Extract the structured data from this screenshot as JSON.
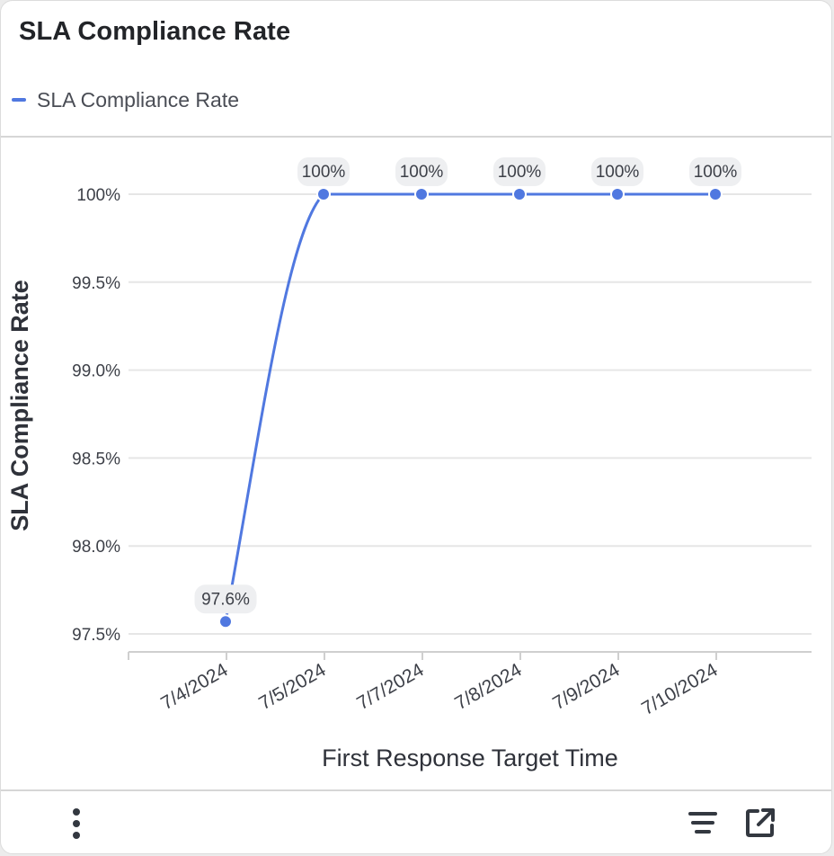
{
  "widget": {
    "title": "SLA Compliance Rate"
  },
  "footer": {
    "more_icon": "more-vertical-icon",
    "filter_icon": "filter-lines-icon",
    "open_icon": "external-link-icon"
  },
  "colors": {
    "series": "#5078e0",
    "label_bg": "#eeeff1",
    "grid": "#e6e6e6",
    "axis": "#cfcfcf",
    "text": "#3d4048"
  },
  "chart_data": {
    "type": "line",
    "categories": [
      "7/4/2024",
      "7/5/2024",
      "7/7/2024",
      "7/8/2024",
      "7/9/2024",
      "7/10/2024"
    ],
    "series": [
      {
        "name": "SLA Compliance Rate",
        "values": [
          97.57,
          100,
          100,
          100,
          100,
          100
        ],
        "labels": [
          "97.6%",
          "100%",
          "100%",
          "100%",
          "100%",
          "100%"
        ]
      }
    ],
    "xlabel": "First Response Target Time",
    "ylabel": "SLA Compliance Rate",
    "ylim": [
      97.5,
      100
    ],
    "yticks": [
      97.5,
      98.0,
      98.5,
      99.0,
      99.5,
      100
    ],
    "ytick_labels": [
      "97.5%",
      "98.0%",
      "98.5%",
      "99.0%",
      "99.5%",
      "100%"
    ],
    "grid": true,
    "legend": "top-left",
    "data_labels": true
  }
}
